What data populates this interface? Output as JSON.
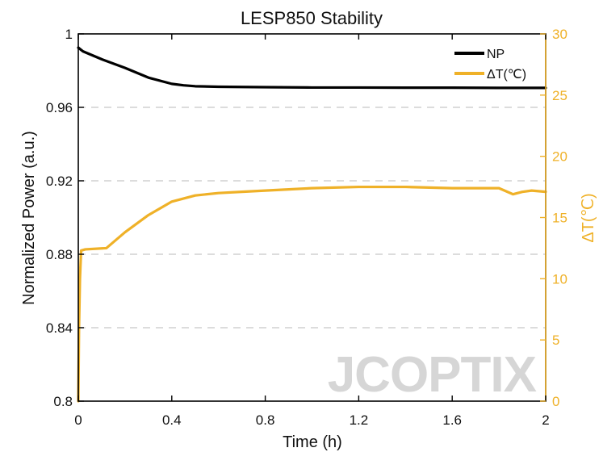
{
  "chart_data": {
    "type": "line",
    "title": "LESP850 Stability",
    "xlabel": "Time (h)",
    "ylabel_left": "Normalized Power (a.u.)",
    "ylabel_right": "ΔT(℃)",
    "xlim": [
      0,
      2
    ],
    "ylim_left": [
      0.8,
      1.0
    ],
    "ylim_right": [
      0,
      30
    ],
    "x_ticks": [
      "0",
      "0.4",
      "0.8",
      "1.2",
      "1.6",
      "2"
    ],
    "y_ticks_left": [
      "0.8",
      "0.84",
      "0.88",
      "0.92",
      "0.96",
      "1"
    ],
    "y_ticks_right": [
      "0",
      "5",
      "10",
      "15",
      "20",
      "25",
      "30"
    ],
    "grid": "horizontal-dashed",
    "legend_placement": "top-right",
    "series": [
      {
        "name": "NP",
        "axis": "left",
        "color": "#000000",
        "x": [
          0,
          0.02,
          0.1,
          0.2,
          0.3,
          0.4,
          0.45,
          0.5,
          0.6,
          0.8,
          1.0,
          1.2,
          1.4,
          1.6,
          1.8,
          2.0
        ],
        "y": [
          0.9925,
          0.9905,
          0.9862,
          0.9815,
          0.9762,
          0.9728,
          0.972,
          0.9715,
          0.9712,
          0.971,
          0.9708,
          0.9708,
          0.9707,
          0.9707,
          0.9706,
          0.9706
        ]
      },
      {
        "name": "ΔT(℃)",
        "axis": "right",
        "color": "#EFB128",
        "x": [
          0,
          0.003,
          0.007,
          0.012,
          0.03,
          0.12,
          0.2,
          0.3,
          0.4,
          0.5,
          0.6,
          0.7,
          0.8,
          1.0,
          1.2,
          1.4,
          1.6,
          1.8,
          1.86,
          1.9,
          1.94,
          2.0
        ],
        "y": [
          0,
          6,
          10,
          12.3,
          12.4,
          12.5,
          13.8,
          15.2,
          16.3,
          16.8,
          17.0,
          17.1,
          17.2,
          17.4,
          17.5,
          17.5,
          17.4,
          17.4,
          16.9,
          17.1,
          17.2,
          17.1
        ]
      }
    ]
  },
  "watermark": "JCOPTIX"
}
